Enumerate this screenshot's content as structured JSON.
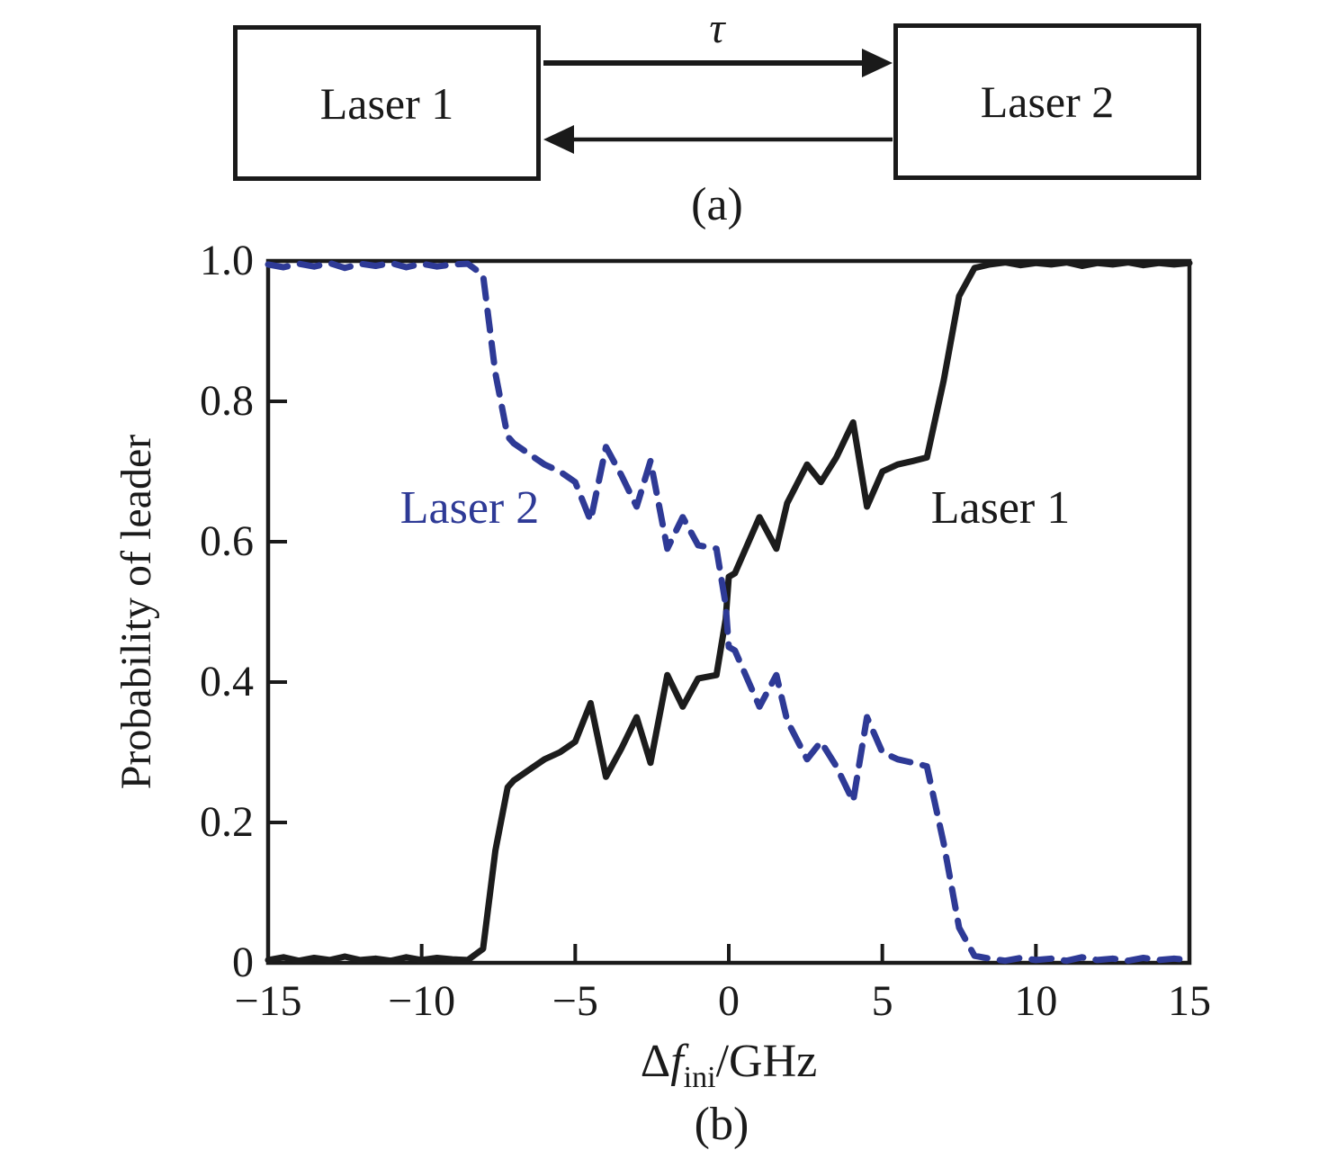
{
  "figure": {
    "panel_a": {
      "label": "(a)",
      "box1_label": "Laser 1",
      "box2_label": "Laser 2",
      "coupling_delay_label": "τ"
    },
    "panel_b": {
      "label": "(b)",
      "ylabel": "Probability of leader",
      "xlabel_delta": "Δ",
      "xlabel_f": "f",
      "xlabel_sub": "ini",
      "xlabel_unit": "/GHz",
      "annotation_laser1": "Laser 1",
      "annotation_laser2": "Laser 2"
    }
  },
  "colors": {
    "ink": "#1a1a1a",
    "laser1_curve": "#1c1c1c",
    "laser2_curve": "#2e3a96"
  },
  "chart_data": {
    "type": "line",
    "title": "",
    "xlabel": "Δf_ini/GHz",
    "ylabel": "Probability of leader",
    "xlim": [
      -15,
      15
    ],
    "ylim": [
      0,
      1
    ],
    "grid": false,
    "legend": "in-plot text labels",
    "x_ticks": [
      -15,
      -10,
      -5,
      0,
      5,
      10,
      15
    ],
    "x_tick_labels": [
      "−15",
      "−10",
      "−5",
      "0",
      "5",
      "10",
      "15"
    ],
    "y_ticks": [
      0,
      0.2,
      0.4,
      0.6,
      0.8,
      1.0
    ],
    "y_tick_labels": [
      "0",
      "0.2",
      "0.4",
      "0.6",
      "0.8",
      "1.0"
    ],
    "x": [
      -15,
      -14.5,
      -14,
      -13.5,
      -13,
      -12.5,
      -12,
      -11.5,
      -11,
      -10.5,
      -10,
      -9.5,
      -9,
      -8.5,
      -8,
      -7.6,
      -7.2,
      -7,
      -6.5,
      -6,
      -5.5,
      -5,
      -4.5,
      -4,
      -3.5,
      -3,
      -2.55,
      -2,
      -1.5,
      -1,
      -0.4,
      -0.1,
      0,
      0.2,
      1,
      1.55,
      1.9,
      2.55,
      3,
      3.5,
      4.05,
      4.5,
      5,
      5.5,
      6,
      6.45,
      7,
      7.5,
      8,
      8.5,
      9,
      9.5,
      10,
      10.5,
      11,
      11.5,
      12,
      12.5,
      13,
      13.5,
      14,
      14.5,
      15
    ],
    "series": [
      {
        "name": "Laser 1",
        "style": "solid",
        "color": "#1c1c1c",
        "values": [
          0.004,
          0.008,
          0.003,
          0.007,
          0.004,
          0.009,
          0.004,
          0.006,
          0.003,
          0.008,
          0.004,
          0.007,
          0.005,
          0.004,
          0.02,
          0.16,
          0.25,
          0.26,
          0.275,
          0.29,
          0.3,
          0.315,
          0.37,
          0.265,
          0.305,
          0.35,
          0.285,
          0.41,
          0.365,
          0.405,
          0.41,
          0.49,
          0.55,
          0.555,
          0.635,
          0.59,
          0.655,
          0.71,
          0.685,
          0.72,
          0.77,
          0.65,
          0.7,
          0.71,
          0.715,
          0.72,
          0.83,
          0.95,
          0.99,
          0.995,
          0.998,
          0.994,
          0.997,
          0.995,
          0.998,
          0.993,
          0.997,
          0.995,
          0.998,
          0.994,
          0.997,
          0.995,
          0.997
        ]
      },
      {
        "name": "Laser 2",
        "style": "dashed",
        "color": "#2e3a96",
        "values": [
          0.995,
          0.991,
          0.996,
          0.992,
          0.997,
          0.99,
          0.996,
          0.993,
          0.997,
          0.991,
          0.996,
          0.992,
          0.995,
          0.996,
          0.98,
          0.84,
          0.75,
          0.74,
          0.725,
          0.71,
          0.7,
          0.685,
          0.63,
          0.735,
          0.695,
          0.65,
          0.715,
          0.59,
          0.635,
          0.595,
          0.59,
          0.51,
          0.45,
          0.445,
          0.365,
          0.41,
          0.345,
          0.29,
          0.315,
          0.28,
          0.23,
          0.35,
          0.3,
          0.29,
          0.285,
          0.28,
          0.17,
          0.05,
          0.01,
          0.006,
          0.003,
          0.007,
          0.004,
          0.006,
          0.003,
          0.008,
          0.004,
          0.006,
          0.003,
          0.007,
          0.004,
          0.006,
          0.004
        ]
      }
    ]
  }
}
